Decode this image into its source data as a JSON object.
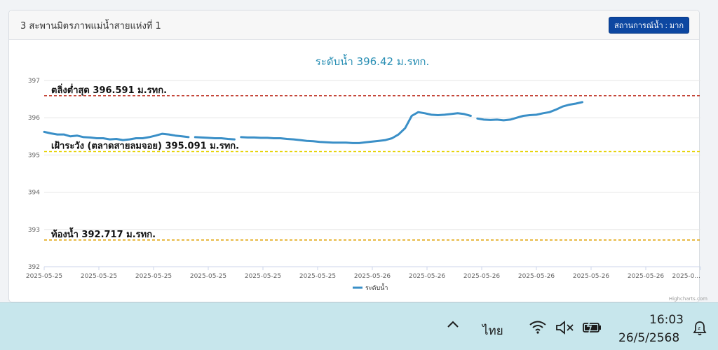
{
  "card": {
    "title": "3 สะพานมิตรภาพแม่น้ำสายแห่งที่ 1",
    "status_button": "สถานการณ์น้ำ : มาก"
  },
  "chart_data": {
    "type": "line",
    "title": "ระดับน้ำ 396.42 ม.รทก.",
    "xlabel": "",
    "ylabel": "",
    "ylim": [
      392,
      397
    ],
    "yticks": [
      392,
      393,
      394,
      395,
      396,
      397
    ],
    "xticks": [
      "2025-05-25",
      "2025-05-25",
      "2025-05-25",
      "2025-05-25",
      "2025-05-25",
      "2025-05-25",
      "2025-05-26",
      "2025-05-26",
      "2025-05-26",
      "2025-05-26",
      "2025-05-26",
      "2025-05-26",
      "2025-0..."
    ],
    "grid": true,
    "legend_position": "bottom-center",
    "series": [
      {
        "name": "ระดับน้ำ",
        "color": "#3a8fc7",
        "segments": [
          [
            [
              0,
              395.62
            ],
            [
              1,
              395.58
            ],
            [
              2,
              395.55
            ],
            [
              3,
              395.55
            ],
            [
              4,
              395.5
            ],
            [
              5,
              395.52
            ],
            [
              6,
              395.48
            ],
            [
              7,
              395.47
            ],
            [
              8,
              395.45
            ],
            [
              9,
              395.45
            ],
            [
              10,
              395.42
            ],
            [
              11,
              395.43
            ],
            [
              12,
              395.4
            ],
            [
              13,
              395.42
            ],
            [
              14,
              395.45
            ],
            [
              15,
              395.45
            ],
            [
              16,
              395.48
            ],
            [
              17,
              395.52
            ],
            [
              18,
              395.57
            ],
            [
              19,
              395.55
            ],
            [
              20,
              395.52
            ],
            [
              21,
              395.5
            ],
            [
              22,
              395.48
            ]
          ],
          [
            [
              23,
              395.48
            ],
            [
              24,
              395.47
            ],
            [
              25,
              395.46
            ],
            [
              26,
              395.45
            ],
            [
              27,
              395.45
            ],
            [
              28,
              395.43
            ],
            [
              29,
              395.42
            ]
          ],
          [
            [
              30,
              395.48
            ],
            [
              31,
              395.47
            ],
            [
              32,
              395.47
            ],
            [
              33,
              395.46
            ],
            [
              34,
              395.46
            ],
            [
              35,
              395.45
            ],
            [
              36,
              395.45
            ],
            [
              37,
              395.43
            ],
            [
              38,
              395.42
            ],
            [
              39,
              395.4
            ],
            [
              40,
              395.38
            ],
            [
              41,
              395.37
            ],
            [
              42,
              395.35
            ],
            [
              43,
              395.34
            ],
            [
              44,
              395.33
            ],
            [
              45,
              395.33
            ],
            [
              46,
              395.33
            ],
            [
              47,
              395.32
            ],
            [
              48,
              395.32
            ],
            [
              49,
              395.34
            ],
            [
              50,
              395.36
            ],
            [
              51,
              395.38
            ],
            [
              52,
              395.4
            ],
            [
              53,
              395.45
            ],
            [
              54,
              395.55
            ],
            [
              55,
              395.72
            ],
            [
              56,
              396.05
            ],
            [
              57,
              396.15
            ],
            [
              58,
              396.12
            ],
            [
              59,
              396.08
            ],
            [
              60,
              396.07
            ],
            [
              61,
              396.08
            ],
            [
              62,
              396.1
            ],
            [
              63,
              396.12
            ],
            [
              64,
              396.1
            ],
            [
              65,
              396.05
            ]
          ],
          [
            [
              66,
              395.98
            ],
            [
              67,
              395.95
            ],
            [
              68,
              395.94
            ],
            [
              69,
              395.95
            ],
            [
              70,
              395.93
            ],
            [
              71,
              395.95
            ],
            [
              72,
              396.0
            ],
            [
              73,
              396.05
            ],
            [
              74,
              396.07
            ],
            [
              75,
              396.08
            ],
            [
              76,
              396.12
            ],
            [
              77,
              396.15
            ],
            [
              78,
              396.22
            ],
            [
              79,
              396.3
            ],
            [
              80,
              396.35
            ],
            [
              81,
              396.38
            ],
            [
              82,
              396.42
            ]
          ]
        ]
      }
    ],
    "x_index_max": 100,
    "plot_lines": [
      {
        "label": "ตลิ่งต่ำสุด 396.591 ม.รทก.",
        "value": 396.591,
        "color": "#c0392b"
      },
      {
        "label": "เฝ้าระวัง (ตลาดสายลมจอย) 395.091 ม.รทก.",
        "value": 395.091,
        "color": "#e6d200"
      },
      {
        "label": "ท้องน้ำ 392.717 ม.รทก.",
        "value": 392.717,
        "color": "#e0a000"
      }
    ],
    "credits": "Highcharts.com"
  },
  "taskbar": {
    "chevron_icon": "chevron-up-icon",
    "language": "ไทย",
    "wifi_icon": "wifi-icon",
    "speaker_icon": "speaker-muted-icon",
    "battery_icon": "battery-icon",
    "time": "16:03",
    "date": "26/5/2568",
    "notification_icon": "notification-icon"
  }
}
